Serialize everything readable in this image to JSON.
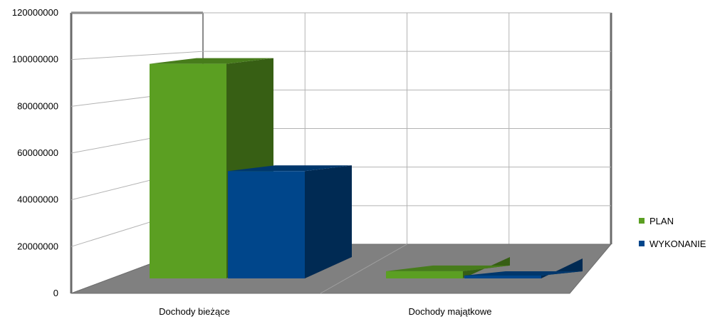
{
  "chart_data": {
    "type": "bar",
    "style": "3d-column",
    "categories": [
      "Dochody bieżące",
      "Dochody majątkowe"
    ],
    "series": [
      {
        "name": "PLAN",
        "values": [
          104000000,
          3500000
        ],
        "color": "#5b9f22"
      },
      {
        "name": "WYKONANIE",
        "values": [
          52000000,
          1000000
        ],
        "color": "#00468b"
      }
    ],
    "ylim": [
      0,
      120000000
    ],
    "yticks": [
      0,
      20000000,
      40000000,
      60000000,
      80000000,
      100000000,
      120000000
    ],
    "ytick_labels": [
      "0",
      "20000000",
      "40000000",
      "60000000",
      "80000000",
      "100000000",
      "120000000"
    ],
    "grid": true,
    "legend_position": "right"
  }
}
